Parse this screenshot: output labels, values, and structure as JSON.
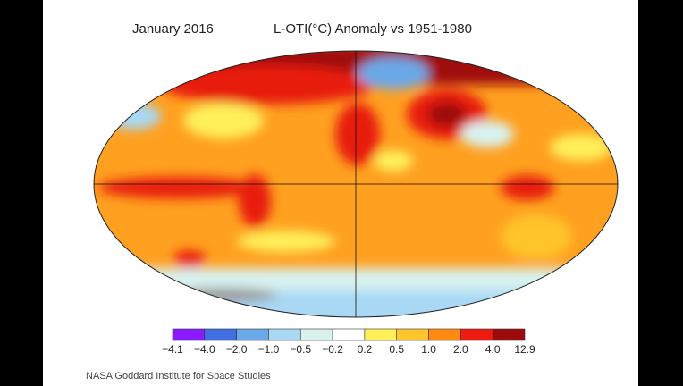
{
  "header": {
    "date": "January 2016",
    "title": "L-OTI(°C) Anomaly vs 1951-1980"
  },
  "legend": {
    "ticks": [
      "−4.1",
      "−4.0",
      "−2.0",
      "−1.0",
      "−0.5",
      "−0.2",
      "0.2",
      "0.5",
      "1.0",
      "2.0",
      "4.0",
      "12.9"
    ],
    "colors": [
      "#8a1aff",
      "#3f6fe0",
      "#6aa8e8",
      "#a8d8f4",
      "#d8f2f0",
      "#ffffff",
      "#fff05a",
      "#ffc52a",
      "#ff8a10",
      "#ee1c10",
      "#9c0c0c"
    ]
  },
  "credit": "NASA Goddard Institute for Space Studies"
}
